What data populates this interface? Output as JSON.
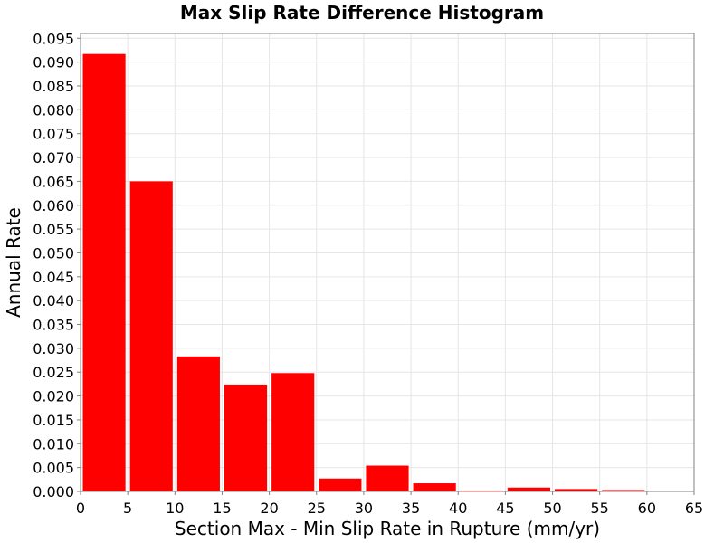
{
  "chart_data": {
    "type": "bar",
    "title": "Max Slip Rate Difference Histogram",
    "xlabel": "Section Max - Min Slip Rate in Rupture (mm/yr)",
    "ylabel": "Annual Rate",
    "xlim": [
      0,
      65
    ],
    "ylim": [
      0,
      0.096
    ],
    "xticks": [
      "0",
      "5",
      "10",
      "15",
      "20",
      "25",
      "30",
      "35",
      "40",
      "45",
      "50",
      "55",
      "60",
      "65"
    ],
    "yticks": [
      "0.000",
      "0.005",
      "0.010",
      "0.015",
      "0.020",
      "0.025",
      "0.030",
      "0.035",
      "0.040",
      "0.045",
      "0.050",
      "0.055",
      "0.060",
      "0.065",
      "0.070",
      "0.075",
      "0.080",
      "0.085",
      "0.090",
      "0.095"
    ],
    "bin_width": 5,
    "bins": [
      {
        "x0": 0,
        "x1": 5,
        "value": 0.0917
      },
      {
        "x0": 5,
        "x1": 10,
        "value": 0.065
      },
      {
        "x0": 10,
        "x1": 15,
        "value": 0.0283
      },
      {
        "x0": 15,
        "x1": 20,
        "value": 0.0224
      },
      {
        "x0": 20,
        "x1": 25,
        "value": 0.0248
      },
      {
        "x0": 25,
        "x1": 30,
        "value": 0.0027
      },
      {
        "x0": 30,
        "x1": 35,
        "value": 0.0054
      },
      {
        "x0": 35,
        "x1": 40,
        "value": 0.0017
      },
      {
        "x0": 40,
        "x1": 45,
        "value": 0.0002
      },
      {
        "x0": 45,
        "x1": 50,
        "value": 0.0008
      },
      {
        "x0": 50,
        "x1": 55,
        "value": 0.0005
      },
      {
        "x0": 55,
        "x1": 60,
        "value": 0.0003
      },
      {
        "x0": 60,
        "x1": 65,
        "value": 0.0001
      }
    ],
    "bar_color": "#ff0000",
    "grid": true,
    "legend": "none"
  }
}
